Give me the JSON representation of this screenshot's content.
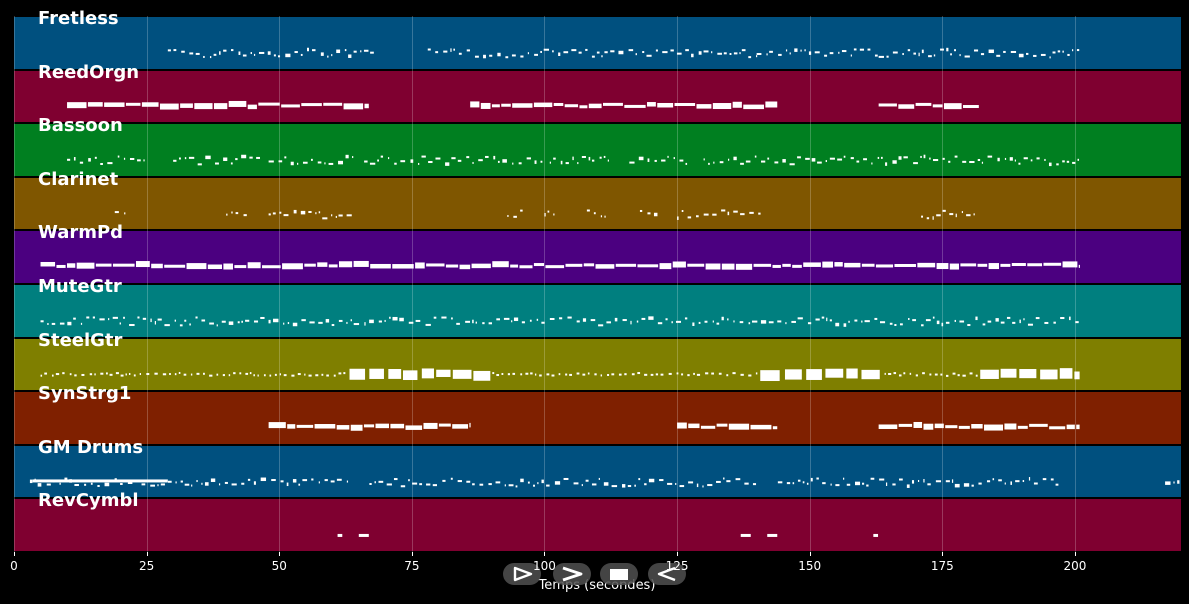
{
  "xaxis": {
    "label": "Temps (secondes)",
    "range": [
      0,
      220
    ],
    "ticks": [
      0,
      25,
      50,
      75,
      100,
      125,
      150,
      175,
      200
    ]
  },
  "tracks": [
    {
      "name": "Fretless",
      "color": "#00507f",
      "style": "dots",
      "segments": [
        [
          29,
          68
        ],
        [
          78,
          140
        ],
        [
          140,
          163
        ],
        [
          163,
          201
        ]
      ]
    },
    {
      "name": "ReedOrgn",
      "color": "#7f0030",
      "style": "thick",
      "segments": [
        [
          10,
          67
        ],
        [
          86,
          144
        ],
        [
          163,
          182
        ]
      ]
    },
    {
      "name": "Bassoon",
      "color": "#007f20",
      "style": "dots",
      "segments": [
        [
          10,
          25
        ],
        [
          30,
          47
        ],
        [
          48,
          64
        ],
        [
          66,
          100
        ],
        [
          101,
          112
        ],
        [
          116,
          127
        ],
        [
          130,
          201
        ]
      ]
    },
    {
      "name": "Clarinet",
      "color": "#7f5600",
      "style": "dots",
      "segments": [
        [
          19,
          21
        ],
        [
          40,
          44
        ],
        [
          48,
          64
        ],
        [
          93,
          96
        ],
        [
          100,
          102
        ],
        [
          108,
          112
        ],
        [
          118,
          122
        ],
        [
          125,
          141
        ],
        [
          171,
          181
        ]
      ]
    },
    {
      "name": "WarmPd",
      "color": "#4b0080",
      "style": "thick",
      "segments": [
        [
          5,
          201
        ]
      ]
    },
    {
      "name": "MuteGtr",
      "color": "#007f7f",
      "style": "dots",
      "segments": [
        [
          5,
          201
        ]
      ]
    },
    {
      "name": "SteelGtr",
      "color": "#7f7f00",
      "style": "mixed",
      "segments": [
        [
          5,
          201
        ]
      ]
    },
    {
      "name": "SynStrg1",
      "color": "#7f2000",
      "style": "thick",
      "segments": [
        [
          48,
          86
        ],
        [
          125,
          144
        ],
        [
          163,
          201
        ]
      ]
    },
    {
      "name": "GM Drums",
      "color": "#00507f",
      "style": "dots",
      "segments": [
        [
          3,
          63
        ],
        [
          67,
          140
        ],
        [
          144,
          197
        ],
        [
          217,
          220
        ]
      ]
    },
    {
      "name": "RevCymbl",
      "color": "#7f0030",
      "style": "sparse",
      "segments": [
        [
          61,
          62
        ],
        [
          65,
          67
        ],
        [
          137,
          139
        ],
        [
          142,
          144
        ],
        [
          162,
          163
        ]
      ]
    }
  ],
  "controls": [
    {
      "name": "forward-play",
      "icon": "play-outline-icon"
    },
    {
      "name": "fast-forward",
      "icon": "chevron-right-icon"
    },
    {
      "name": "stop",
      "icon": "stop-icon"
    },
    {
      "name": "rewind",
      "icon": "rewind-outline-icon"
    }
  ]
}
